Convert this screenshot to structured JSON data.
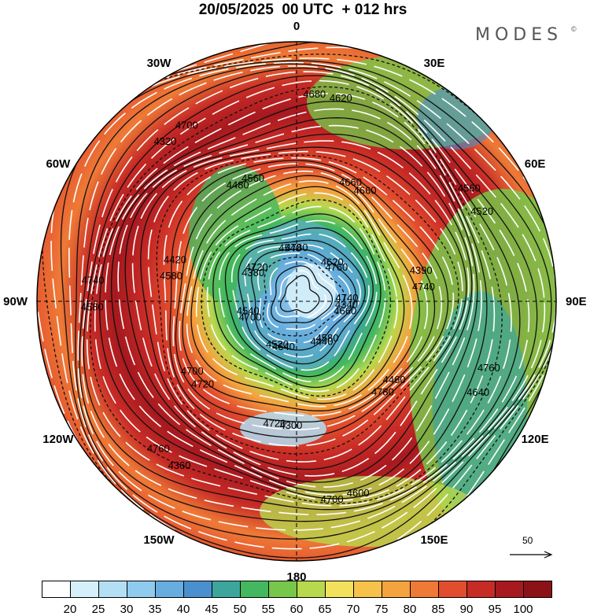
{
  "title": "20/05/2025  00 UTC  + 012 hrs",
  "brand": "MODES",
  "brand_mark": "©",
  "longitude_labels": [
    {
      "text": "0",
      "deg": 0
    },
    {
      "text": "30E",
      "deg": 30
    },
    {
      "text": "60E",
      "deg": 60
    },
    {
      "text": "90E",
      "deg": 90
    },
    {
      "text": "120E",
      "deg": 120
    },
    {
      "text": "150E",
      "deg": 150
    },
    {
      "text": "180",
      "deg": 180
    },
    {
      "text": "150W",
      "deg": -150
    },
    {
      "text": "120W",
      "deg": -120
    },
    {
      "text": "90W",
      "deg": -90
    },
    {
      "text": "60W",
      "deg": -60
    },
    {
      "text": "30W",
      "deg": -30
    }
  ],
  "contour_labels": [
    "4740",
    "4720",
    "4680",
    "4580",
    "4580",
    "4560",
    "4640",
    "4480",
    "4760",
    "4700",
    "4660",
    "4600",
    "4380",
    "4390",
    "4360",
    "4540",
    "4460",
    "4580",
    "4620",
    "4300",
    "4320",
    "4340",
    "4700",
    "4620",
    "4440",
    "4420",
    "4520",
    "4520",
    "4560",
    "4640",
    "4540",
    "4660",
    "4700",
    "4720",
    "4740",
    "4760",
    "4780",
    "4780",
    "4740",
    "4760",
    "4720",
    "4700",
    "4660"
  ],
  "colorbar": {
    "labels": [
      "20",
      "25",
      "30",
      "35",
      "40",
      "45",
      "50",
      "55",
      "60",
      "65",
      "70",
      "75",
      "80",
      "85",
      "90",
      "95",
      "100"
    ],
    "colors": [
      "#ffffff",
      "#d6f0fb",
      "#b3dff5",
      "#8ecbee",
      "#67addf",
      "#4a90cf",
      "#3da69c",
      "#44b85e",
      "#77c74a",
      "#b8d84d",
      "#f3e15b",
      "#f6c24a",
      "#f4a33e",
      "#ee7a36",
      "#e24d2e",
      "#c72b26",
      "#a7191f",
      "#8c1218"
    ]
  },
  "wind_scale_label": "50"
}
